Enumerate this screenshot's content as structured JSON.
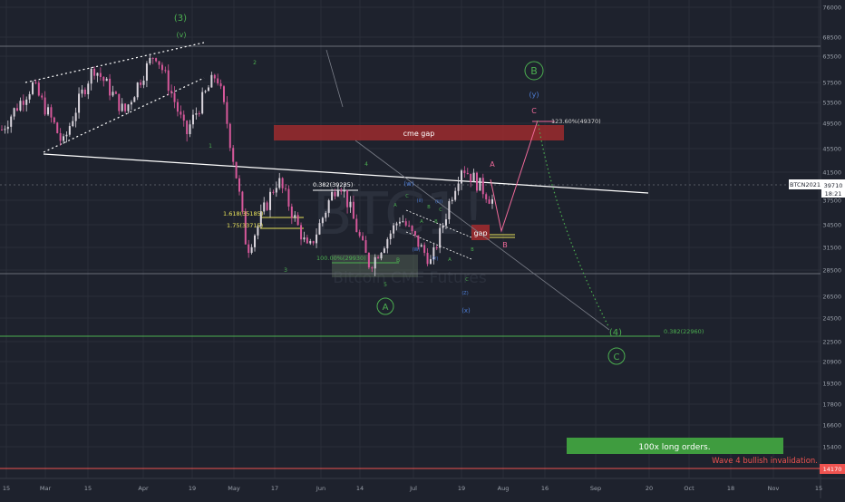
{
  "colors": {
    "background": "#1e222d",
    "grid": "#2a2e39",
    "candle_up": "#d9d4dc",
    "candle_down": "#d6589a",
    "trendline": "#ffffff",
    "wave_green": "#4caf50",
    "wave_blue": "#4f7fd8",
    "wave_pink": "#f06a9a",
    "gap_fill": "#9c2a2e",
    "label_yellow": "#e8e25a",
    "axis_text": "#9aa0aa",
    "price_line": "#8e929c",
    "invalidation": "#ef5350",
    "long_box": "#3f9c3f"
  },
  "chart_data": {
    "type": "line",
    "symbol": "BTCN2021",
    "watermark": {
      "symbol": "BTC1!",
      "name": "Bitcoin CME Futures"
    },
    "x_ticks": [
      "15",
      "Mar",
      "15",
      "Apr",
      "19",
      "May",
      "17",
      "Jun",
      "14",
      "Jul",
      "19",
      "Aug",
      "16",
      "Sep",
      "20",
      "Oct",
      "18",
      "Nov",
      "15"
    ],
    "y_ticks": [
      "76000",
      "68500",
      "63500",
      "57500",
      "53500",
      "49500",
      "45500",
      "41500",
      "37500",
      "34500",
      "31500",
      "28500",
      "26500",
      "24500",
      "22500",
      "20900",
      "19300",
      "17800",
      "16600",
      "15400",
      "14170"
    ],
    "ylim": [
      13500,
      78000
    ],
    "current_price": {
      "label": "BTCN2021",
      "value": "39710",
      "countdown": "18:21"
    },
    "invalidation": {
      "value": "14170",
      "label": "Wave 4 bullish invalidation."
    },
    "long_orders_label": "100x long orders.",
    "gap_zones": [
      {
        "label": "cme gap",
        "low": 47200,
        "high": 49800
      },
      {
        "label": "gap",
        "low": 33100,
        "high": 35100
      }
    ],
    "fib_labels": [
      {
        "text": "0.382(39235)",
        "value": 39235
      },
      {
        "text": "1.618(35185)",
        "value": 35185
      },
      {
        "text": "1.75(33715)",
        "value": 33715
      },
      {
        "text": "100.00%(29930)",
        "value": 29930
      },
      {
        "text": "123.60%(49370)",
        "value": 49370
      },
      {
        "text": "0.382(22960)",
        "value": 22960
      }
    ],
    "wave_labels": [
      {
        "text": "(3)",
        "color": "green",
        "circled": false
      },
      {
        "text": "(v)",
        "color": "green",
        "circled": false
      },
      {
        "text": "2",
        "color": "green",
        "circled": false
      },
      {
        "text": "1",
        "color": "green",
        "circled": false
      },
      {
        "text": "3",
        "color": "green",
        "circled": false
      },
      {
        "text": "4",
        "color": "green",
        "circled": false
      },
      {
        "text": "5",
        "color": "green",
        "circled": false
      },
      {
        "text": "A",
        "color": "green",
        "circled": true
      },
      {
        "text": "B",
        "color": "green",
        "circled": true
      },
      {
        "text": "C",
        "color": "green",
        "circled": true
      },
      {
        "text": "(4)",
        "color": "green",
        "circled": false
      },
      {
        "text": "(w)",
        "color": "blue",
        "circled": false
      },
      {
        "text": "(x)",
        "color": "blue",
        "circled": false
      },
      {
        "text": "(y)",
        "color": "blue",
        "circled": false
      },
      {
        "text": "C",
        "color": "pink",
        "circled": false
      },
      {
        "text": "A",
        "color": "pink",
        "circled": false
      },
      {
        "text": "B",
        "color": "pink",
        "circled": false
      },
      {
        "text": "B",
        "color": "green",
        "circled": false
      }
    ],
    "price_series_approx": [
      {
        "x": "Feb 15",
        "y": 48500
      },
      {
        "x": "Feb 21",
        "y": 57000
      },
      {
        "x": "Mar 1",
        "y": 46000
      },
      {
        "x": "Mar 13",
        "y": 61000
      },
      {
        "x": "Mar 25",
        "y": 51500
      },
      {
        "x": "Apr 14",
        "y": 64500
      },
      {
        "x": "Apr 25",
        "y": 47500
      },
      {
        "x": "May 11",
        "y": 59500
      },
      {
        "x": "May 19",
        "y": 31000
      },
      {
        "x": "May 26",
        "y": 40500
      },
      {
        "x": "Jun 8",
        "y": 31000
      },
      {
        "x": "Jun 15",
        "y": 40500
      },
      {
        "x": "Jun 22",
        "y": 29000
      },
      {
        "x": "Jul 6",
        "y": 35500
      },
      {
        "x": "Jul 20",
        "y": 29500
      },
      {
        "x": "Jul 30",
        "y": 42500
      },
      {
        "x": "Aug 3",
        "y": 37500
      }
    ]
  }
}
